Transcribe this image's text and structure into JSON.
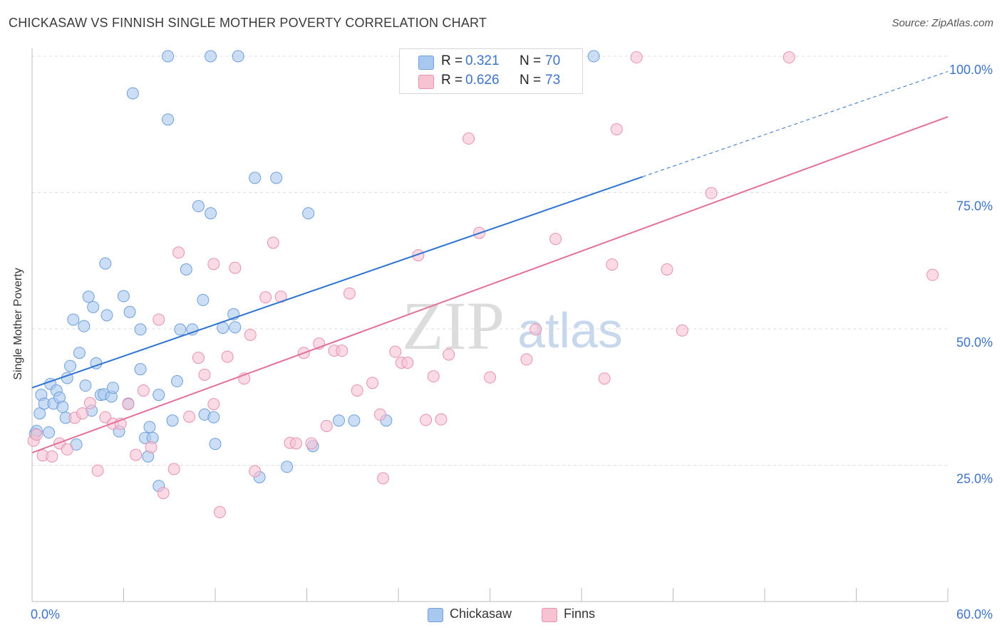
{
  "title": "CHICKASAW VS FINNISH SINGLE MOTHER POVERTY CORRELATION CHART",
  "source": "Source: ZipAtlas.com",
  "watermark": {
    "zip": "ZIP",
    "atlas": "atlas"
  },
  "legend_top": {
    "rows": [
      {
        "r_label": "R =",
        "r_value": "0.321",
        "n_label": "N =",
        "n_value": "70",
        "color": "#a9c8f0",
        "border": "#6f9fdc",
        "text_color": "#3d74c9"
      },
      {
        "r_label": "R =",
        "r_value": "0.626",
        "n_label": "N =",
        "n_value": "73",
        "color": "#f7c3d3",
        "border": "#e991ae",
        "text_color": "#3d74c9"
      }
    ]
  },
  "legend_bottom": {
    "items": [
      {
        "label": "Chickasaw",
        "color": "#a9c8f0",
        "border": "#6f9fdc"
      },
      {
        "label": "Finns",
        "color": "#f7c3d3",
        "border": "#e991ae"
      }
    ]
  },
  "chart_data": {
    "type": "scatter",
    "title": "CHICKASAW VS FINNISH SINGLE MOTHER POVERTY CORRELATION CHART",
    "xlabel": "",
    "ylabel": "Single Mother Poverty",
    "xlim": [
      0,
      60
    ],
    "ylim": [
      0,
      100
    ],
    "x_tick_labels": [
      "0.0%",
      "60.0%"
    ],
    "y_ticks": [
      25,
      50,
      75,
      100
    ],
    "y_tick_labels": [
      "25.0%",
      "50.0%",
      "75.0%",
      "100.0%"
    ],
    "x_minor_ticks": [
      0,
      6,
      12,
      18,
      24,
      30,
      36,
      42,
      48,
      54,
      60
    ],
    "grid": true,
    "legend_position": "bottom",
    "series": [
      {
        "name": "Chickasaw",
        "color": "#a9c8f0",
        "stroke": "#6f9fdc",
        "line_color": "#2f73d0",
        "trend": {
          "x0": 0,
          "y0": 39.2,
          "x1": 40,
          "y1": 77.9,
          "x_ext": 60,
          "y_ext": 97.2
        },
        "points": [
          [
            0.2,
            30.8
          ],
          [
            0.5,
            34.5
          ],
          [
            0.6,
            37.9
          ],
          [
            0.8,
            36.3
          ],
          [
            1.1,
            31.0
          ],
          [
            1.2,
            39.9
          ],
          [
            1.4,
            36.3
          ],
          [
            1.6,
            38.7
          ],
          [
            1.8,
            37.4
          ],
          [
            2.0,
            35.7
          ],
          [
            2.2,
            33.7
          ],
          [
            2.3,
            41.0
          ],
          [
            2.5,
            43.2
          ],
          [
            2.9,
            28.8
          ],
          [
            3.1,
            45.6
          ],
          [
            3.4,
            50.5
          ],
          [
            3.5,
            39.6
          ],
          [
            3.7,
            55.9
          ],
          [
            3.9,
            35.0
          ],
          [
            4.0,
            54.0
          ],
          [
            2.7,
            51.7
          ],
          [
            4.2,
            43.7
          ],
          [
            4.5,
            37.9
          ],
          [
            4.7,
            38.0
          ],
          [
            4.8,
            62.0
          ],
          [
            4.9,
            52.5
          ],
          [
            5.2,
            37.6
          ],
          [
            5.3,
            39.2
          ],
          [
            5.7,
            31.2
          ],
          [
            6.0,
            56.0
          ],
          [
            6.3,
            36.3
          ],
          [
            6.4,
            53.1
          ],
          [
            6.6,
            93.2
          ],
          [
            7.1,
            42.6
          ],
          [
            7.1,
            49.9
          ],
          [
            7.4,
            30.0
          ],
          [
            7.6,
            26.6
          ],
          [
            7.7,
            32.0
          ],
          [
            7.9,
            30.0
          ],
          [
            8.3,
            21.2
          ],
          [
            8.3,
            37.9
          ],
          [
            8.9,
            100.0
          ],
          [
            8.9,
            88.4
          ],
          [
            9.2,
            33.2
          ],
          [
            9.5,
            40.4
          ],
          [
            9.7,
            49.9
          ],
          [
            10.1,
            60.9
          ],
          [
            10.5,
            49.9
          ],
          [
            10.9,
            72.5
          ],
          [
            11.2,
            55.3
          ],
          [
            11.3,
            34.3
          ],
          [
            11.7,
            100.0
          ],
          [
            11.7,
            71.2
          ],
          [
            11.9,
            33.8
          ],
          [
            12.0,
            28.9
          ],
          [
            12.5,
            50.2
          ],
          [
            13.2,
            52.7
          ],
          [
            13.3,
            50.3
          ],
          [
            13.5,
            100.0
          ],
          [
            14.6,
            77.7
          ],
          [
            14.9,
            22.8
          ],
          [
            16.0,
            77.7
          ],
          [
            16.7,
            24.7
          ],
          [
            18.1,
            71.2
          ],
          [
            18.4,
            28.5
          ],
          [
            20.1,
            33.2
          ],
          [
            21.1,
            33.2
          ],
          [
            23.2,
            33.2
          ],
          [
            36.8,
            100.0
          ],
          [
            0.3,
            31.3
          ]
        ]
      },
      {
        "name": "Finns",
        "color": "#f7c3d3",
        "stroke": "#e991ae",
        "line_color": "#e3709a",
        "trend": {
          "x0": 0,
          "y0": 27.3,
          "x1": 60,
          "y1": 88.9
        },
        "points": [
          [
            0.1,
            29.5
          ],
          [
            0.3,
            30.6
          ],
          [
            0.7,
            26.8
          ],
          [
            1.3,
            26.6
          ],
          [
            1.8,
            29.0
          ],
          [
            2.3,
            27.9
          ],
          [
            2.8,
            33.7
          ],
          [
            3.3,
            34.5
          ],
          [
            3.8,
            36.4
          ],
          [
            4.3,
            24.0
          ],
          [
            4.8,
            33.8
          ],
          [
            5.3,
            32.6
          ],
          [
            5.8,
            32.6
          ],
          [
            6.3,
            36.2
          ],
          [
            6.8,
            26.9
          ],
          [
            7.3,
            38.7
          ],
          [
            7.8,
            28.3
          ],
          [
            8.3,
            51.7
          ],
          [
            8.6,
            19.9
          ],
          [
            9.3,
            24.3
          ],
          [
            9.6,
            64.0
          ],
          [
            10.3,
            33.9
          ],
          [
            10.9,
            44.7
          ],
          [
            11.3,
            41.6
          ],
          [
            11.9,
            36.2
          ],
          [
            12.3,
            16.4
          ],
          [
            12.8,
            44.9
          ],
          [
            13.3,
            61.2
          ],
          [
            13.9,
            40.9
          ],
          [
            14.3,
            48.9
          ],
          [
            14.6,
            23.9
          ],
          [
            15.3,
            55.8
          ],
          [
            15.8,
            65.8
          ],
          [
            16.3,
            55.9
          ],
          [
            16.9,
            29.1
          ],
          [
            17.3,
            29.0
          ],
          [
            17.8,
            45.6
          ],
          [
            18.3,
            29.0
          ],
          [
            18.8,
            47.3
          ],
          [
            19.3,
            32.2
          ],
          [
            19.8,
            46.0
          ],
          [
            20.3,
            46.0
          ],
          [
            20.8,
            56.5
          ],
          [
            21.3,
            38.7
          ],
          [
            22.3,
            40.1
          ],
          [
            22.8,
            34.3
          ],
          [
            23.0,
            22.6
          ],
          [
            23.8,
            45.8
          ],
          [
            24.2,
            43.8
          ],
          [
            24.6,
            43.8
          ],
          [
            25.3,
            63.5
          ],
          [
            25.8,
            33.3
          ],
          [
            26.3,
            41.3
          ],
          [
            26.8,
            33.4
          ],
          [
            27.3,
            45.3
          ],
          [
            27.8,
            99.8
          ],
          [
            28.6,
            84.9
          ],
          [
            29.3,
            67.6
          ],
          [
            30.0,
            41.1
          ],
          [
            32.0,
            99.8
          ],
          [
            32.4,
            44.4
          ],
          [
            33.0,
            49.9
          ],
          [
            34.3,
            66.5
          ],
          [
            37.5,
            40.9
          ],
          [
            38.0,
            61.8
          ],
          [
            38.3,
            86.6
          ],
          [
            39.6,
            99.8
          ],
          [
            41.6,
            60.9
          ],
          [
            42.6,
            49.7
          ],
          [
            44.5,
            74.9
          ],
          [
            49.6,
            99.8
          ],
          [
            59.0,
            59.9
          ],
          [
            11.9,
            61.9
          ]
        ]
      }
    ]
  }
}
